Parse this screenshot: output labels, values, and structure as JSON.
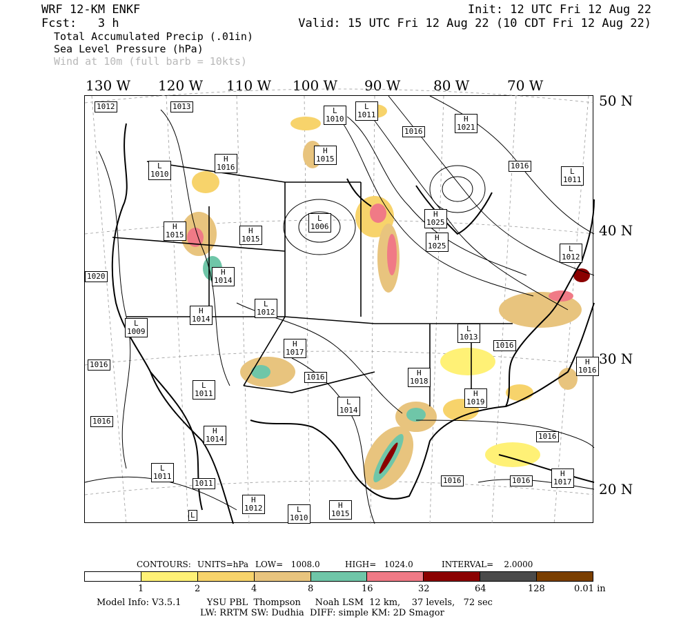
{
  "header": {
    "line1_left": "WRF 12-KM ENKF",
    "line1_right": "Init: 12 UTC Fri 12 Aug 22",
    "line2_left": "Fcst:   3 h",
    "line2_right": "Valid: 15 UTC Fri 12 Aug 22 (10 CDT Fri 12 Aug 22)",
    "field1": "Total Accumulated Precip (.01in)",
    "field2": "Sea Level Pressure (hPa)",
    "field3": "Wind at 10m (full barb = 10kts)"
  },
  "longitude_labels": [
    "130 W",
    "120 W",
    "110 W",
    "100 W",
    "90 W",
    "80 W",
    "70 W"
  ],
  "latitude_labels": [
    "50 N",
    "40 N",
    "30 N",
    "20 N"
  ],
  "pressure_centers": [
    {
      "sym": "",
      "val": "1012"
    },
    {
      "sym": "",
      "val": "1013"
    },
    {
      "sym": "L",
      "val": "1010"
    },
    {
      "sym": "L",
      "val": "1011"
    },
    {
      "sym": "",
      "val": "1016"
    },
    {
      "sym": "H",
      "val": "1021"
    },
    {
      "sym": "H",
      "val": "1015"
    },
    {
      "sym": "",
      "val": "1016"
    },
    {
      "sym": "L",
      "val": "1011"
    },
    {
      "sym": "L",
      "val": "1010"
    },
    {
      "sym": "H",
      "val": "1016"
    },
    {
      "sym": "L",
      "val": "1006"
    },
    {
      "sym": "H",
      "val": "1015"
    },
    {
      "sym": "H",
      "val": "1015"
    },
    {
      "sym": "H",
      "val": "1025"
    },
    {
      "sym": "H",
      "val": "1025"
    },
    {
      "sym": "L",
      "val": "1012"
    },
    {
      "sym": "",
      "val": "1020"
    },
    {
      "sym": "H",
      "val": "1014"
    },
    {
      "sym": "L",
      "val": "1012"
    },
    {
      "sym": "H",
      "val": "1014"
    },
    {
      "sym": "L",
      "val": "1009"
    },
    {
      "sym": "H",
      "val": "1017"
    },
    {
      "sym": "L",
      "val": "1013"
    },
    {
      "sym": "",
      "val": "1016"
    },
    {
      "sym": "",
      "val": "1016"
    },
    {
      "sym": "",
      "val": "1016"
    },
    {
      "sym": "H",
      "val": "1018"
    },
    {
      "sym": "L",
      "val": "1011"
    },
    {
      "sym": "H",
      "val": "1019"
    },
    {
      "sym": "H",
      "val": "1016"
    },
    {
      "sym": "L",
      "val": "1014"
    },
    {
      "sym": "",
      "val": "1016"
    },
    {
      "sym": "H",
      "val": "1014"
    },
    {
      "sym": "",
      "val": "1016"
    },
    {
      "sym": "L",
      "val": "1011"
    },
    {
      "sym": "",
      "val": "1011"
    },
    {
      "sym": "H",
      "val": "1012"
    },
    {
      "sym": "L",
      "val": "1010"
    },
    {
      "sym": "H",
      "val": "1015"
    },
    {
      "sym": "",
      "val": "1016"
    },
    {
      "sym": "",
      "val": "1016"
    },
    {
      "sym": "H",
      "val": "1017"
    },
    {
      "sym": "L",
      "val": ""
    }
  ],
  "contour_info": {
    "contours": "CONTOURS:",
    "units": "UNITS=hPa",
    "low": "LOW=   1008.0",
    "high": "HIGH=   1024.0",
    "interval": "INTERVAL=    2.0000"
  },
  "colorbar": {
    "colors": [
      "#ffffff",
      "#fff176",
      "#f7d36b",
      "#e8c47e",
      "#6fc6a8",
      "#f07a86",
      "#8b0000",
      "#4a4a4a",
      "#7a3e00"
    ],
    "labels": [
      "1",
      "2",
      "4",
      "8",
      "16",
      "32",
      "64",
      "128",
      "0.01 in"
    ]
  },
  "footer": {
    "line1": "Model Info: V3.5.1         YSU PBL  Thompson     Noah LSM  12 km,    37 levels,   72 sec",
    "line2": "LW: RRTM SW: Dudhia  DIFF: simple KM: 2D Smagor"
  }
}
